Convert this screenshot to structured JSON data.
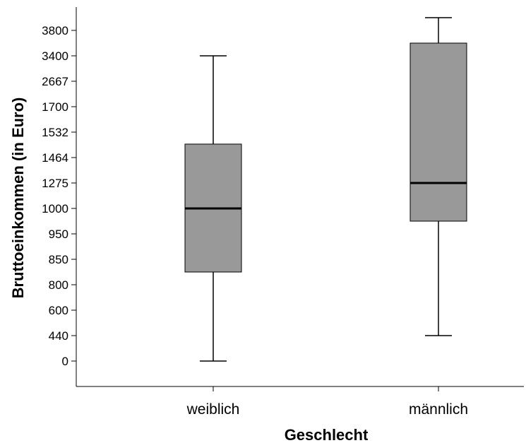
{
  "chart_data": {
    "type": "boxplot",
    "xlabel": "Geschlecht",
    "ylabel": "Bruttoeinkommen (in Euro)",
    "y_ticks": [
      "0",
      "440",
      "600",
      "800",
      "850",
      "950",
      "1000",
      "1275",
      "1464",
      "1532",
      "1700",
      "2667",
      "3400",
      "3800"
    ],
    "y_scale": "categorical-ordinal",
    "categories": [
      "weiblich",
      "männlich"
    ],
    "boxes": [
      {
        "category": "weiblich",
        "whisker_low": 0,
        "q1": 825,
        "median": 1000,
        "q3": 1500,
        "whisker_high": 3400
      },
      {
        "category": "männlich",
        "whisker_low": 440,
        "q1": 975,
        "median": 1275,
        "q3": 3600,
        "whisker_high": 4000
      }
    ],
    "box_color": "#999999",
    "grid": false,
    "legend": "none"
  }
}
